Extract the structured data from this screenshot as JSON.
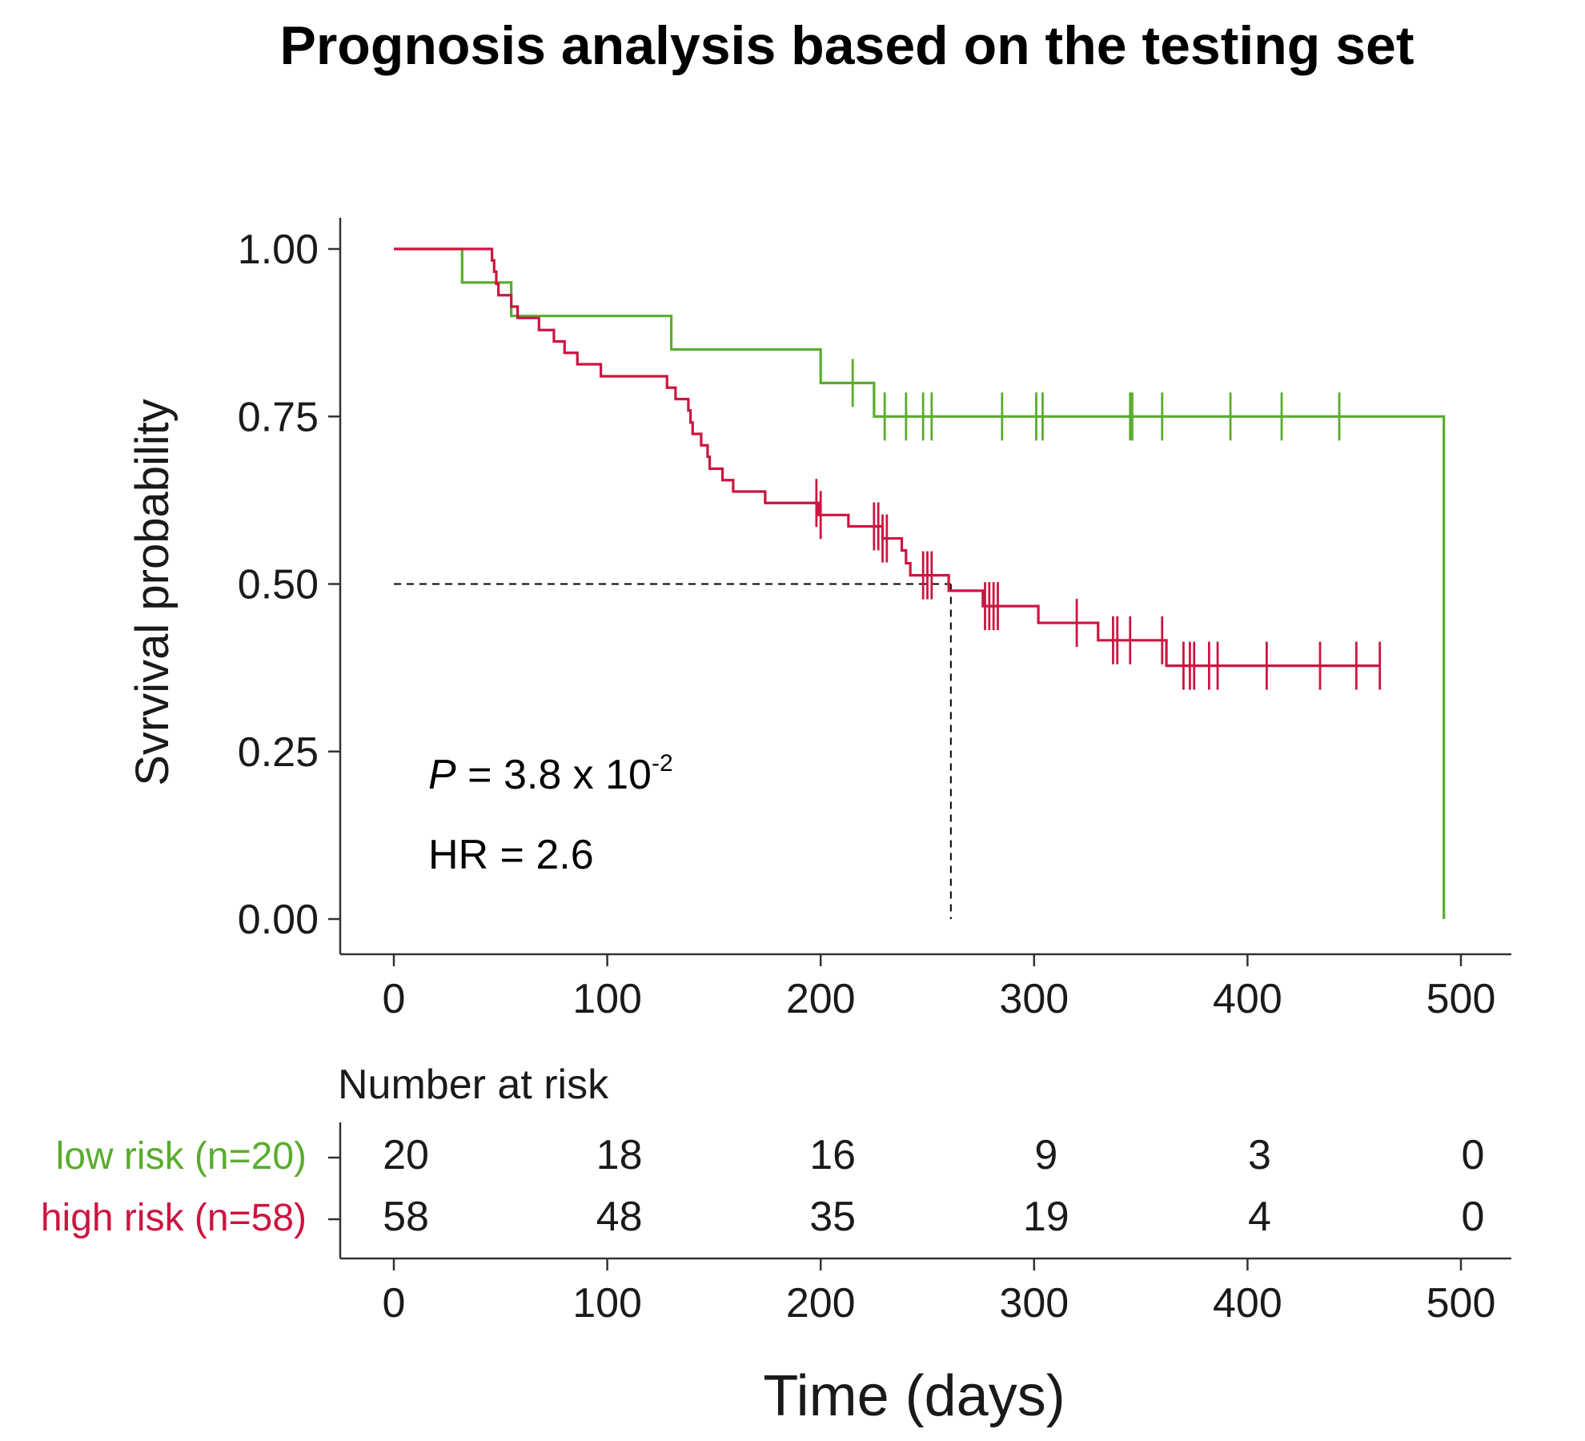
{
  "chart_data": {
    "type": "line",
    "title": "Prognosis analysis based on the testing set",
    "ylabel": "Svrvival probability",
    "xlabel": "Time (days)",
    "xlim": [
      0,
      500
    ],
    "ylim": [
      0,
      1
    ],
    "x_ticks": [
      0,
      100,
      200,
      300,
      400,
      500
    ],
    "x_tick_labels": [
      "0",
      "100",
      "200",
      "300",
      "400",
      "500"
    ],
    "y_ticks": [
      0,
      0.25,
      0.5,
      0.75,
      1.0
    ],
    "y_tick_labels": [
      "0.00",
      "0.25",
      "0.50",
      "0.75",
      "1.00"
    ],
    "grid": false,
    "series": [
      {
        "name": "low risk (n=20)",
        "color": "#5aac2e",
        "steps": [
          [
            0,
            1.0
          ],
          [
            32,
            0.95
          ],
          [
            55,
            0.9
          ],
          [
            130,
            0.85
          ],
          [
            200,
            0.8
          ],
          [
            225,
            0.75
          ],
          [
            492,
            0.0
          ]
        ],
        "censor": [
          215,
          230,
          240,
          248,
          252,
          285,
          301,
          304,
          345,
          346,
          360,
          392,
          416,
          443
        ]
      },
      {
        "name": "high risk (n=58)",
        "color": "#cc1540",
        "steps": [
          [
            0,
            1.0
          ],
          [
            46,
            0.983
          ],
          [
            47,
            0.966
          ],
          [
            48,
            0.948
          ],
          [
            49,
            0.931
          ],
          [
            55,
            0.914
          ],
          [
            58,
            0.897
          ],
          [
            68,
            0.879
          ],
          [
            75,
            0.862
          ],
          [
            80,
            0.845
          ],
          [
            86,
            0.828
          ],
          [
            97,
            0.81
          ],
          [
            128,
            0.793
          ],
          [
            132,
            0.776
          ],
          [
            138,
            0.759
          ],
          [
            139,
            0.741
          ],
          [
            140,
            0.724
          ],
          [
            144,
            0.707
          ],
          [
            147,
            0.69
          ],
          [
            148,
            0.672
          ],
          [
            154,
            0.655
          ],
          [
            159,
            0.638
          ],
          [
            174,
            0.621
          ],
          [
            199,
            0.603
          ],
          [
            213,
            0.586
          ],
          [
            229,
            0.568
          ],
          [
            238,
            0.55
          ],
          [
            240,
            0.531
          ],
          [
            242,
            0.513
          ],
          [
            260,
            0.49
          ],
          [
            276,
            0.467
          ],
          [
            302,
            0.442
          ],
          [
            330,
            0.416
          ],
          [
            362,
            0.378
          ]
        ],
        "censor": [
          198,
          200,
          225,
          227,
          229,
          231,
          248,
          250,
          252,
          277,
          279,
          281,
          283,
          320,
          337,
          339,
          345,
          360,
          370,
          373,
          375,
          382,
          386,
          409,
          434,
          451,
          462
        ]
      }
    ],
    "median_line": {
      "x": 261,
      "y": 0.5
    },
    "annotations": {
      "p_label": "P",
      "p_value": " = 3.8 x 10",
      "p_exponent": "-2",
      "hr": "HR = 2.6"
    },
    "risk_table": {
      "title": "Number at risk",
      "times": [
        0,
        100,
        200,
        300,
        400,
        500
      ],
      "rows": [
        {
          "label": "low risk (n=20)",
          "color": "#5aac2e",
          "counts": [
            "20",
            "18",
            "16",
            "9",
            "3",
            "0"
          ]
        },
        {
          "label": "high risk (n=58)",
          "color": "#cc1540",
          "counts": [
            "58",
            "48",
            "35",
            "19",
            "4",
            "0"
          ]
        }
      ]
    }
  }
}
